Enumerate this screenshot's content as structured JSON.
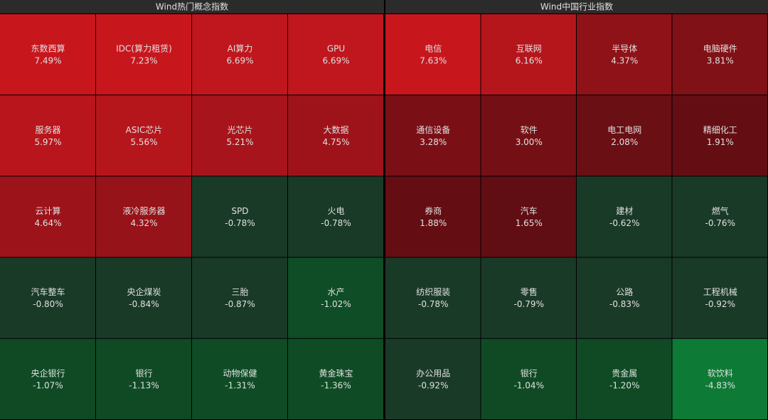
{
  "chart_data": [
    {
      "type": "heatmap",
      "title": "Wind热门概念指数",
      "categories": [
        "东数西算",
        "IDC(算力租赁)",
        "AI算力",
        "GPU",
        "服务器",
        "ASIC芯片",
        "光芯片",
        "大数据",
        "云计算",
        "液冷服务器",
        "SPD",
        "火电",
        "汽车整车",
        "央企煤炭",
        "三胎",
        "水产",
        "央企银行",
        "银行",
        "动物保健",
        "黄金珠宝"
      ],
      "values": [
        7.49,
        7.23,
        6.69,
        6.69,
        5.97,
        5.56,
        5.21,
        4.75,
        4.64,
        4.32,
        -0.78,
        -0.78,
        -0.8,
        -0.84,
        -0.87,
        -1.02,
        -1.07,
        -1.13,
        -1.31,
        -1.36
      ],
      "value_labels": [
        "7.49%",
        "7.23%",
        "6.69%",
        "6.69%",
        "5.97%",
        "5.56%",
        "5.21%",
        "4.75%",
        "4.64%",
        "4.32%",
        "-0.78%",
        "-0.78%",
        "-0.80%",
        "-0.84%",
        "-0.87%",
        "-1.02%",
        "-1.07%",
        "-1.13%",
        "-1.31%",
        "-1.36%"
      ],
      "colors": [
        "#c8161d",
        "#c8161d",
        "#c0161d",
        "#c0161d",
        "#b8161c",
        "#b5161c",
        "#a8141b",
        "#9e131a",
        "#9c131a",
        "#961319",
        "#1a3a28",
        "#1a3a28",
        "#1a3a28",
        "#1a3a28",
        "#1a3a28",
        "#0e4d25",
        "#0f4a25",
        "#0f4a25",
        "#0f4c25",
        "#0f4c25"
      ]
    },
    {
      "type": "heatmap",
      "title": "Wind中国行业指数",
      "categories": [
        "电信",
        "互联网",
        "半导体",
        "电脑硬件",
        "通信设备",
        "软件",
        "电工电网",
        "精细化工",
        "券商",
        "汽车",
        "建材",
        "燃气",
        "纺织服装",
        "零售",
        "公路",
        "工程机械",
        "办公用品",
        "银行",
        "贵金属",
        "软饮料"
      ],
      "values": [
        7.63,
        6.16,
        4.37,
        3.81,
        3.28,
        3.0,
        2.08,
        1.91,
        1.88,
        1.65,
        -0.62,
        -0.76,
        -0.78,
        -0.79,
        -0.83,
        -0.92,
        -0.92,
        -1.04,
        -1.2,
        -4.83
      ],
      "value_labels": [
        "7.63%",
        "6.16%",
        "4.37%",
        "3.81%",
        "3.28%",
        "3.00%",
        "2.08%",
        "1.91%",
        "1.88%",
        "1.65%",
        "-0.62%",
        "-0.76%",
        "-0.78%",
        "-0.79%",
        "-0.83%",
        "-0.92%",
        "-0.92%",
        "-1.04%",
        "-1.20%",
        "-4.83%"
      ],
      "colors": [
        "#c8161d",
        "#b5161c",
        "#8e1218",
        "#801116",
        "#7a1016",
        "#741015",
        "#6a0f14",
        "#640e13",
        "#640e13",
        "#600e13",
        "#1a3a28",
        "#1a3a28",
        "#1a3a28",
        "#1a3a28",
        "#1a3a28",
        "#1a3a28",
        "#1a3a28",
        "#104a25",
        "#0f4a25",
        "#0d7a35"
      ]
    }
  ]
}
